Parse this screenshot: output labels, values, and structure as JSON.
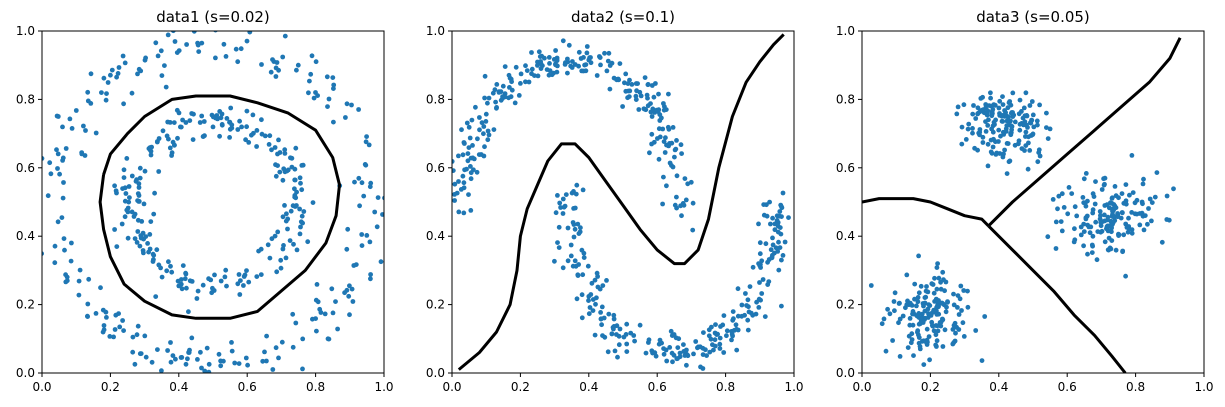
{
  "chart_data": [
    {
      "type": "scatter",
      "title": "data1 (s=0.02)",
      "xlim": [
        0,
        1
      ],
      "ylim": [
        0,
        1
      ],
      "xticks": [
        "0.0",
        "0.2",
        "0.4",
        "0.6",
        "0.8",
        "1.0"
      ],
      "yticks": [
        "0.0",
        "0.2",
        "0.4",
        "0.6",
        "0.8",
        "1.0"
      ],
      "grid": false,
      "point_color": "#1f77b4",
      "boundary_color": "#000000",
      "clusters": [
        {
          "kind": "ring",
          "cx": 0.5,
          "cy": 0.5,
          "r": 0.47,
          "spread": 0.035,
          "n": 260
        },
        {
          "kind": "ring",
          "cx": 0.5,
          "cy": 0.5,
          "r": 0.24,
          "spread": 0.025,
          "n": 250
        }
      ],
      "boundary": [
        [
          0.18,
          0.58
        ],
        [
          0.2,
          0.64
        ],
        [
          0.25,
          0.7
        ],
        [
          0.3,
          0.75
        ],
        [
          0.38,
          0.8
        ],
        [
          0.45,
          0.81
        ],
        [
          0.55,
          0.81
        ],
        [
          0.63,
          0.79
        ],
        [
          0.72,
          0.76
        ],
        [
          0.8,
          0.71
        ],
        [
          0.85,
          0.63
        ],
        [
          0.87,
          0.55
        ],
        [
          0.86,
          0.46
        ],
        [
          0.83,
          0.38
        ],
        [
          0.77,
          0.3
        ],
        [
          0.7,
          0.24
        ],
        [
          0.63,
          0.18
        ],
        [
          0.55,
          0.16
        ],
        [
          0.45,
          0.16
        ],
        [
          0.38,
          0.17
        ],
        [
          0.3,
          0.21
        ],
        [
          0.24,
          0.26
        ],
        [
          0.2,
          0.34
        ],
        [
          0.18,
          0.42
        ],
        [
          0.17,
          0.5
        ],
        [
          0.18,
          0.58
        ]
      ]
    },
    {
      "type": "scatter",
      "title": "data2 (s=0.1)",
      "xlim": [
        0,
        1
      ],
      "ylim": [
        0,
        1
      ],
      "xticks": [
        "0.0",
        "0.2",
        "0.4",
        "0.6",
        "0.8",
        "1.0"
      ],
      "yticks": [
        "0.0",
        "0.2",
        "0.4",
        "0.6",
        "0.8",
        "1.0"
      ],
      "grid": false,
      "point_color": "#1f77b4",
      "boundary_color": "#000000",
      "clusters": [
        {
          "kind": "arc",
          "cx": 0.35,
          "cy": 0.48,
          "rx": 0.32,
          "ry": 0.44,
          "from": 0,
          "to": 180,
          "spread": 0.025,
          "n": 260
        },
        {
          "kind": "arc",
          "cx": 0.65,
          "cy": 0.52,
          "rx": 0.31,
          "ry": 0.46,
          "from": 180,
          "to": 360,
          "spread": 0.025,
          "n": 260
        }
      ],
      "boundary": [
        [
          0.02,
          0.01
        ],
        [
          0.08,
          0.06
        ],
        [
          0.13,
          0.12
        ],
        [
          0.17,
          0.2
        ],
        [
          0.19,
          0.3
        ],
        [
          0.2,
          0.4
        ],
        [
          0.22,
          0.48
        ],
        [
          0.25,
          0.55
        ],
        [
          0.28,
          0.62
        ],
        [
          0.32,
          0.67
        ],
        [
          0.36,
          0.67
        ],
        [
          0.4,
          0.63
        ],
        [
          0.45,
          0.56
        ],
        [
          0.5,
          0.49
        ],
        [
          0.55,
          0.42
        ],
        [
          0.6,
          0.36
        ],
        [
          0.65,
          0.32
        ],
        [
          0.68,
          0.32
        ],
        [
          0.72,
          0.36
        ],
        [
          0.75,
          0.45
        ],
        [
          0.78,
          0.6
        ],
        [
          0.82,
          0.75
        ],
        [
          0.86,
          0.85
        ],
        [
          0.9,
          0.91
        ],
        [
          0.94,
          0.96
        ],
        [
          0.97,
          0.99
        ]
      ]
    },
    {
      "type": "scatter",
      "title": "data3 (s=0.05)",
      "xlim": [
        0,
        1
      ],
      "ylim": [
        0,
        1
      ],
      "xticks": [
        "0.0",
        "0.2",
        "0.4",
        "0.6",
        "0.8",
        "1.0"
      ],
      "yticks": [
        "0.0",
        "0.2",
        "0.4",
        "0.6",
        "0.8",
        "1.0"
      ],
      "grid": false,
      "point_color": "#1f77b4",
      "boundary_color": "#000000",
      "clusters": [
        {
          "kind": "blob",
          "cx": 0.42,
          "cy": 0.73,
          "sx": 0.06,
          "sy": 0.055,
          "n": 170
        },
        {
          "kind": "blob",
          "cx": 0.73,
          "cy": 0.46,
          "sx": 0.07,
          "sy": 0.055,
          "n": 170
        },
        {
          "kind": "blob",
          "cx": 0.2,
          "cy": 0.17,
          "sx": 0.06,
          "sy": 0.06,
          "n": 170
        }
      ],
      "boundaries": [
        [
          [
            0.0,
            0.5
          ],
          [
            0.05,
            0.51
          ],
          [
            0.1,
            0.51
          ],
          [
            0.15,
            0.51
          ],
          [
            0.2,
            0.5
          ],
          [
            0.25,
            0.48
          ],
          [
            0.3,
            0.46
          ],
          [
            0.35,
            0.45
          ],
          [
            0.37,
            0.43
          ]
        ],
        [
          [
            0.37,
            0.43
          ],
          [
            0.44,
            0.5
          ],
          [
            0.52,
            0.57
          ],
          [
            0.6,
            0.64
          ],
          [
            0.68,
            0.71
          ],
          [
            0.76,
            0.78
          ],
          [
            0.84,
            0.85
          ],
          [
            0.9,
            0.92
          ],
          [
            0.93,
            0.98
          ]
        ],
        [
          [
            0.37,
            0.43
          ],
          [
            0.44,
            0.36
          ],
          [
            0.5,
            0.3
          ],
          [
            0.56,
            0.24
          ],
          [
            0.62,
            0.17
          ],
          [
            0.68,
            0.11
          ],
          [
            0.73,
            0.05
          ],
          [
            0.77,
            0.0
          ]
        ]
      ]
    }
  ]
}
